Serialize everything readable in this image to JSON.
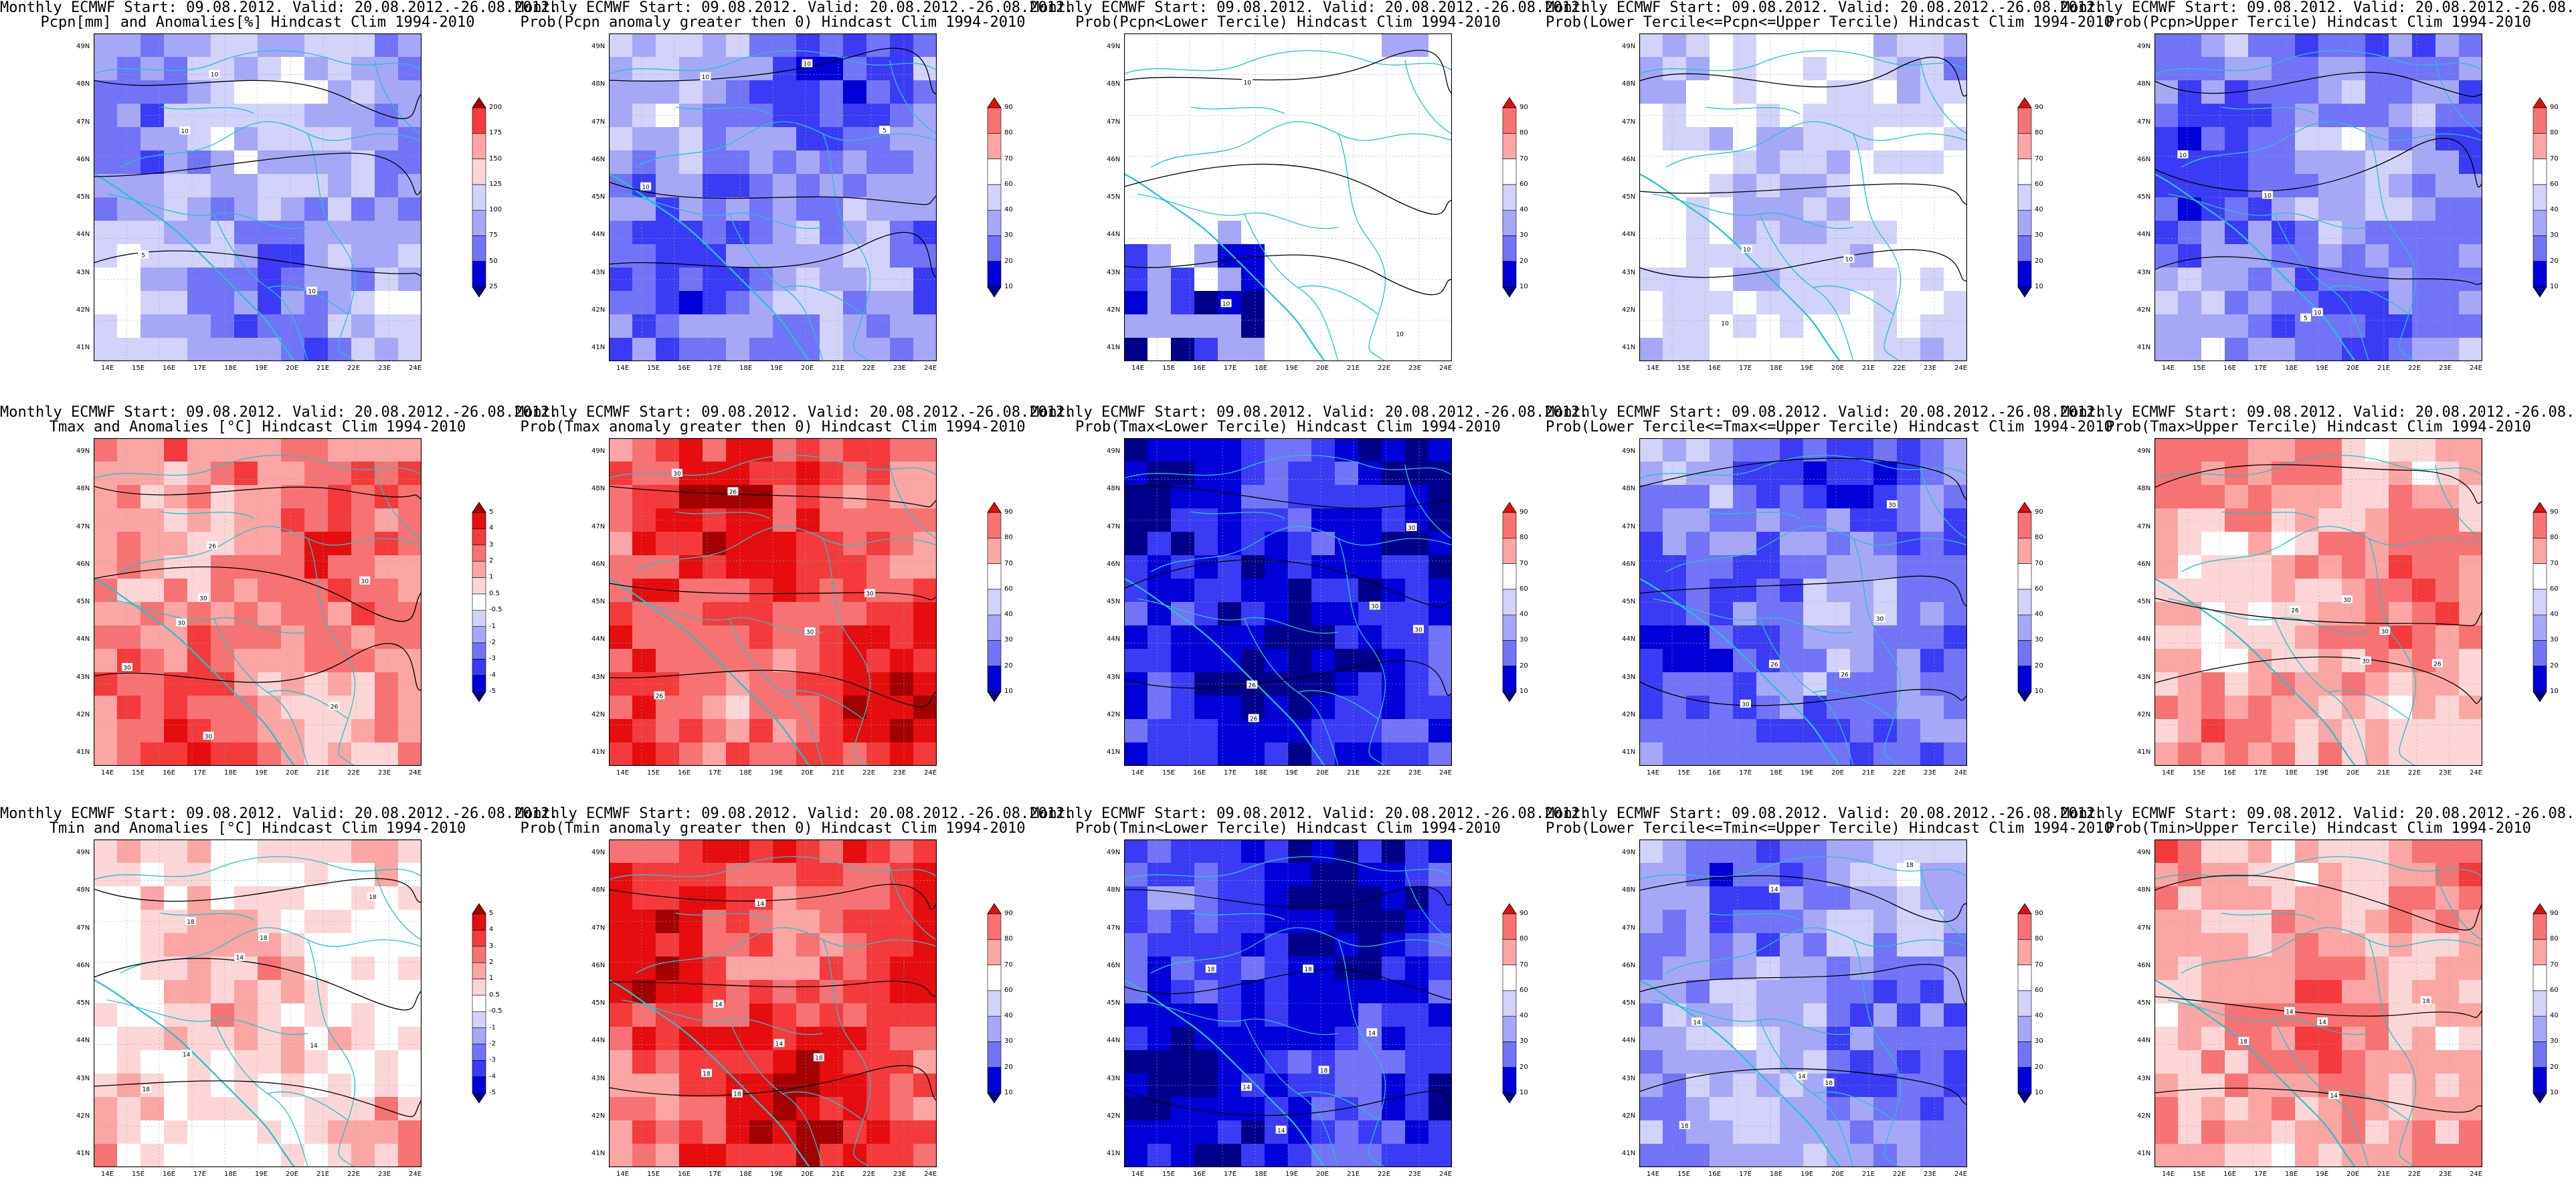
{
  "header_line": "Monthly ECMWF Start: 09.08.2012. Valid: 20.08.2012.-26.08.2012.",
  "colors": {
    "blue_scale": [
      "#00008b",
      "#0000d8",
      "#3b3bf5",
      "#7373f7",
      "#a7a7f7",
      "#d2d2fa",
      "#ffffff"
    ],
    "red_scale": [
      "#ffffff",
      "#fcd6d6",
      "#fba5a5",
      "#f77272",
      "#f43a3a",
      "#e50d0d",
      "#a30000"
    ],
    "border_lines": "#22c3cf",
    "contour_lines": "#000000"
  },
  "axes": {
    "lat_ticks": [
      "41N",
      "42N",
      "43N",
      "44N",
      "45N",
      "46N",
      "47N",
      "48N",
      "49N"
    ],
    "lon_ticks": [
      "14E",
      "15E",
      "16E",
      "17E",
      "18E",
      "19E",
      "20E",
      "21E",
      "22E",
      "23E",
      "24E"
    ]
  },
  "colorbars": {
    "pcpn_anomaly": [
      "25",
      "50",
      "75",
      "100",
      "125",
      "150",
      "175",
      "200"
    ],
    "temp_anomaly": [
      "-5",
      "-4",
      "-3",
      "-2",
      "-1",
      "-0.5",
      "0.5",
      "1",
      "2",
      "3",
      "4",
      "5"
    ],
    "probability": [
      "10",
      "20",
      "30",
      "40",
      "60",
      "70",
      "80",
      "90"
    ]
  },
  "panels": [
    {
      "title": "Pcpn[mm] and Anomalies[%] Hindcast Clim 1994-2010",
      "scheme": "blue",
      "bias": -0.35,
      "colorbar": "pcpn_anomaly",
      "contour_labels": [
        "10",
        "10",
        "10",
        "5"
      ]
    },
    {
      "title": "Prob(Pcpn anomaly greater then 0) Hindcast Clim 1994-2010",
      "scheme": "blue",
      "bias": -0.45,
      "colorbar": "probability",
      "contour_labels": [
        "10",
        "10",
        "10",
        "5"
      ]
    },
    {
      "title": "Prob(Pcpn<Lower Tercile) Hindcast Clim 1994-2010",
      "scheme": "white",
      "bias": 0.0,
      "colorbar": "probability",
      "contour_labels": [
        "10",
        "10",
        "10"
      ]
    },
    {
      "title": "Prob(Lower Tercile<=Pcpn<=Upper Tercile) Hindcast Clim 1994-2010",
      "scheme": "blue",
      "bias": -0.15,
      "colorbar": "probability",
      "contour_labels": [
        "10",
        "10",
        "10"
      ]
    },
    {
      "title": "Prob(Pcpn>Upper Tercile) Hindcast Clim 1994-2010",
      "scheme": "blue",
      "bias": -0.45,
      "colorbar": "probability",
      "contour_labels": [
        "10",
        "10",
        "10",
        "5"
      ]
    },
    {
      "title": "Tmax and Anomalies [°C] Hindcast Clim 1994-2010",
      "scheme": "red",
      "bias": 0.45,
      "colorbar": "temp_anomaly",
      "contour_labels": [
        "26",
        "26",
        "30",
        "30",
        "30",
        "30",
        "30"
      ]
    },
    {
      "title": "Prob(Tmax anomaly greater then 0) Hindcast Clim 1994-2010",
      "scheme": "red",
      "bias": 0.6,
      "colorbar": "probability",
      "contour_labels": [
        "26",
        "26",
        "30",
        "30",
        "30"
      ]
    },
    {
      "title": "Prob(Tmax<Lower Tercile) Hindcast Clim 1994-2010",
      "scheme": "blue",
      "bias": -0.75,
      "colorbar": "probability",
      "contour_labels": [
        "26",
        "26",
        "30",
        "30",
        "30"
      ]
    },
    {
      "title": "Prob(Lower Tercile<=Tmax<=Upper Tercile) Hindcast Clim 1994-2010",
      "scheme": "blue",
      "bias": -0.5,
      "colorbar": "probability",
      "contour_labels": [
        "26",
        "26",
        "30",
        "30",
        "30"
      ]
    },
    {
      "title": "Prob(Tmax>Upper Tercile) Hindcast Clim 1994-2010",
      "scheme": "red",
      "bias": 0.35,
      "colorbar": "probability",
      "contour_labels": [
        "26",
        "26",
        "30",
        "30",
        "30"
      ]
    },
    {
      "title": "Tmin and Anomalies [°C] Hindcast Clim 1994-2010",
      "scheme": "red",
      "bias": 0.2,
      "colorbar": "temp_anomaly",
      "contour_labels": [
        "14",
        "14",
        "18",
        "18",
        "14",
        "18",
        "18"
      ]
    },
    {
      "title": "Prob(Tmin anomaly greater then 0) Hindcast Clim 1994-2010",
      "scheme": "red",
      "bias": 0.65,
      "colorbar": "probability",
      "contour_labels": [
        "14",
        "14",
        "18",
        "18",
        "18",
        "14"
      ]
    },
    {
      "title": "Prob(Tmin<Lower Tercile) Hindcast Clim 1994-2010",
      "scheme": "blue",
      "bias": -0.72,
      "colorbar": "probability",
      "contour_labels": [
        "14",
        "14",
        "18",
        "18",
        "18",
        "14"
      ]
    },
    {
      "title": "Prob(Lower Tercile<=Tmin<=Upper Tercile) Hindcast Clim 1994-2010",
      "scheme": "blue",
      "bias": -0.4,
      "colorbar": "probability",
      "contour_labels": [
        "14",
        "14",
        "18",
        "18",
        "18",
        "14"
      ]
    },
    {
      "title": "Prob(Tmin>Upper Tercile) Hindcast Clim 1994-2010",
      "scheme": "red",
      "bias": 0.35,
      "colorbar": "probability",
      "contour_labels": [
        "14",
        "14",
        "18",
        "18",
        "14"
      ]
    }
  ]
}
